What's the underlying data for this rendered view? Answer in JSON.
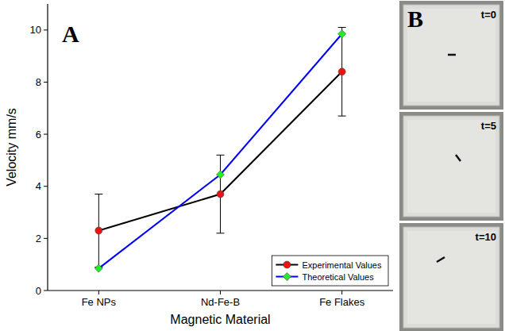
{
  "chart_data": {
    "type": "line",
    "annotations": [
      "A"
    ],
    "x_label": "Magnetic Material",
    "y_label": "Velocity mm/s",
    "categories": [
      "Fe NPs",
      "Nd-Fe-B",
      "Fe Flakes"
    ],
    "series": [
      {
        "name": "Experimental Values",
        "color": "#000000",
        "marker": "circle",
        "values": [
          2.3,
          3.7,
          8.4
        ],
        "errors": [
          1.4,
          1.5,
          1.7
        ]
      },
      {
        "name": "Theoretical Values",
        "color": "#0000ff",
        "marker": "diamond",
        "values": [
          0.85,
          4.45,
          9.85
        ]
      }
    ],
    "ylim": [
      0,
      11
    ],
    "yticks": [
      0,
      2,
      4,
      6,
      8,
      10
    ],
    "legend": "lower right",
    "grid": false
  },
  "photo_panel": {
    "label": "B",
    "frames": [
      "t=0",
      "t=5",
      "t=10"
    ]
  }
}
